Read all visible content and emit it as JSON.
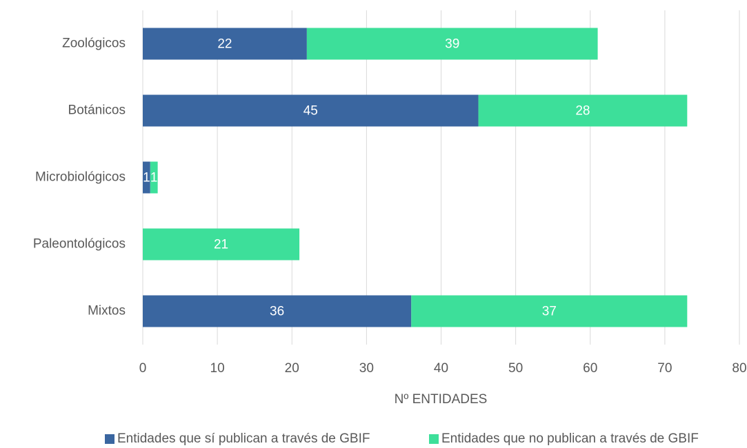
{
  "chart_data": {
    "type": "stacked_barh",
    "categories": [
      "Zoológicos",
      "Botánicos",
      "Microbiológicos",
      "Paleontológicos",
      "Mixtos"
    ],
    "series": [
      {
        "name": "Entidades que sí publican a través de GBIF",
        "color": "#3a66a0",
        "values": [
          22,
          45,
          1,
          null,
          36
        ]
      },
      {
        "name": "Entidades que no publican a través de GBIF",
        "color": "#3ddf9a",
        "values": [
          39,
          28,
          1,
          21,
          37
        ]
      }
    ],
    "xlabel": "Nº ENTIDADES",
    "xlim": [
      0,
      80
    ],
    "xticks": [
      0,
      10,
      20,
      30,
      40,
      50,
      60,
      70,
      80
    ],
    "grid": true,
    "legend": "bottom"
  }
}
